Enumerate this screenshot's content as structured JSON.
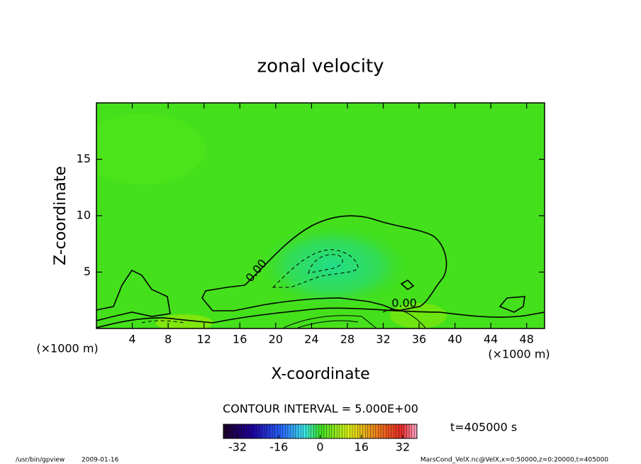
{
  "chart_data": {
    "type": "contour",
    "title": "zonal velocity",
    "x_label": "X-coordinate",
    "y_label": "Z-coordinate",
    "x_unit": "(×1000 m)",
    "y_unit": "(×1000 m)",
    "xlim": [
      0,
      50
    ],
    "xticks": [
      4,
      8,
      12,
      16,
      20,
      24,
      28,
      32,
      36,
      40,
      44,
      48
    ],
    "ylim": [
      0,
      20
    ],
    "yticks": [
      5,
      10,
      15
    ],
    "contour_labels": [
      "0.00",
      "0.00"
    ],
    "contour_interval_text": "CONTOUR INTERVAL = 5.000E+00",
    "time_label": "t=405000 s",
    "colorbar": {
      "lim": [
        -37.5,
        37.5
      ],
      "ticks": [
        -32,
        -16,
        0,
        16,
        32
      ]
    }
  },
  "footer": {
    "program": "/usr/bin/gpview",
    "date": "2009-01-16",
    "source": "MarsCond_VelX.nc@VelX,x=0:50000,z=0:20000,t=405000"
  }
}
